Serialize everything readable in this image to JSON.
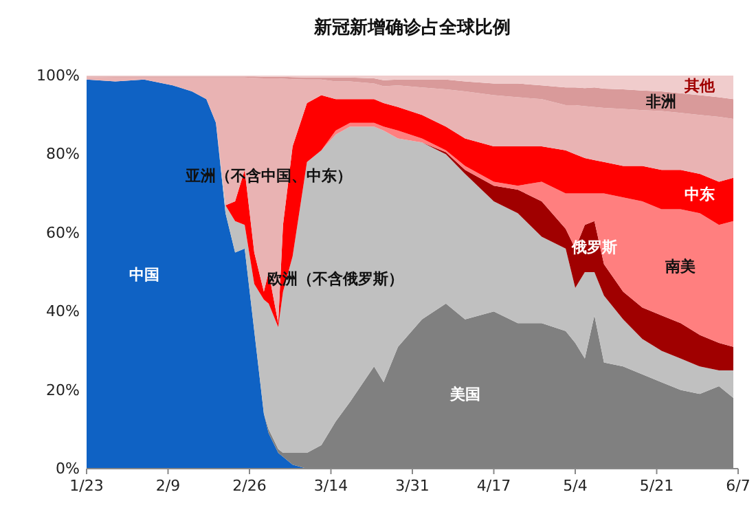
{
  "chart_data": {
    "type": "area",
    "stacked": true,
    "title": "新冠新增确诊占全球比例",
    "x": [
      "--01-23",
      "--01-29",
      "--02-04",
      "--02-10",
      "--02-14",
      "--02-17",
      "--02-19",
      "--02-21",
      "--02-23",
      "--02-25",
      "--02-27",
      "--02-29",
      "--03-01",
      "--03-03",
      "--03-04",
      "--03-06",
      "--03-09",
      "--03-12",
      "--03-15",
      "--03-18",
      "--03-23",
      "--03-25",
      "--03-28",
      "--04-02",
      "--04-07",
      "--04-11",
      "--04-17",
      "--04-22",
      "--04-27",
      "--05-02",
      "--05-04",
      "--05-06",
      "--05-08",
      "--05-10",
      "--05-14",
      "--05-18",
      "--05-22",
      "--05-26",
      "--05-30",
      "--06-03",
      "--06-06"
    ],
    "series": [
      {
        "name": "中国",
        "color": "#0f62c4",
        "values": [
          99,
          98.5,
          99,
          97.5,
          96,
          94,
          88,
          65,
          55,
          56,
          35,
          14,
          9,
          4,
          3,
          1,
          0,
          null,
          null,
          null,
          null,
          null,
          null,
          null,
          null,
          null,
          null,
          null,
          null,
          null,
          null,
          null,
          null,
          null,
          null,
          null,
          null,
          null,
          null,
          null,
          null
        ]
      },
      {
        "name": "美国",
        "color": "#808080",
        "values": [
          null,
          null,
          null,
          null,
          null,
          null,
          null,
          null,
          null,
          null,
          null,
          0,
          1,
          1,
          1,
          3,
          4,
          6,
          12,
          17,
          26,
          22,
          31,
          38,
          42,
          38,
          40,
          37,
          37,
          35,
          32,
          28,
          39,
          27,
          26,
          24,
          22,
          20,
          19,
          21,
          18
        ]
      },
      {
        "name": "欧洲（不含俄罗斯）",
        "color": "#c0c0c0",
        "values": [
          null,
          null,
          null,
          null,
          null,
          null,
          0,
          2,
          8,
          6,
          12,
          29,
          32,
          31,
          41,
          50,
          74,
          75,
          73,
          70,
          61,
          64,
          53,
          45,
          38,
          37,
          28,
          28,
          22,
          21,
          14,
          22,
          11,
          17,
          12,
          9,
          8,
          8,
          7,
          4,
          7
        ]
      },
      {
        "name": "俄罗斯",
        "color": "#a00000",
        "values": [
          null,
          null,
          null,
          null,
          null,
          null,
          null,
          null,
          null,
          null,
          null,
          null,
          null,
          null,
          null,
          null,
          null,
          null,
          null,
          null,
          null,
          null,
          null,
          0,
          0.5,
          1,
          4,
          6,
          9,
          5,
          10,
          12,
          13,
          8,
          7,
          8,
          9,
          9,
          8,
          7,
          6
        ]
      },
      {
        "name": "南美",
        "color": "#ff7f7f",
        "values": [
          null,
          null,
          null,
          null,
          null,
          null,
          null,
          null,
          null,
          null,
          null,
          null,
          null,
          null,
          null,
          null,
          null,
          0,
          1,
          1,
          1,
          1,
          2,
          1,
          0.5,
          1,
          1,
          1,
          5,
          9,
          14,
          8,
          7,
          18,
          24,
          27,
          27,
          29,
          31,
          30,
          32
        ]
      },
      {
        "name": "中东",
        "color": "#ff0000",
        "values": [
          null,
          null,
          null,
          null,
          null,
          null,
          null,
          0,
          5,
          14,
          8,
          2,
          8,
          1,
          17,
          28,
          15,
          14,
          8,
          6,
          6,
          6,
          6,
          6,
          6,
          7,
          9,
          10,
          9,
          11,
          10,
          9,
          8.5,
          8,
          8,
          9,
          10,
          10,
          10,
          11,
          11
        ]
      },
      {
        "name": "亚洲（不含中国、中东）",
        "color": "#e9b3b3",
        "values": [
          0.6,
          1.0,
          0.5,
          2.0,
          3.5,
          5.5,
          11.5,
          32.5,
          31.5,
          23.5,
          44.4,
          54.3,
          49.3,
          62.3,
          37.2,
          17.1,
          6,
          4,
          4.5,
          4.5,
          4,
          4.3,
          5.5,
          7,
          9.5,
          12,
          13,
          12.5,
          12,
          11.5,
          12.5,
          13.2,
          13.5,
          13.8,
          14.5,
          14.2,
          15,
          14.5,
          15,
          16.5,
          15
        ]
      },
      {
        "name": "非洲",
        "color": "#d99a9a",
        "values": [
          0.2,
          0.3,
          0.3,
          0.3,
          0.3,
          0.3,
          0.3,
          0.3,
          0.3,
          0.3,
          0.4,
          0.4,
          0.4,
          0.4,
          0.5,
          0.5,
          0.5,
          0.5,
          1,
          1,
          1.3,
          1.5,
          1.5,
          2,
          2.5,
          2.5,
          3,
          3.5,
          3.5,
          4.5,
          4.5,
          4.6,
          5,
          4.9,
          5,
          5,
          5,
          5,
          5,
          5,
          5
        ]
      },
      {
        "name": "其他",
        "color": "#f0cccc",
        "values": [
          0.2,
          0.2,
          0.2,
          0.2,
          0.2,
          0.2,
          0.2,
          0.2,
          0.2,
          0.2,
          0.2,
          0.3,
          0.3,
          0.3,
          0.3,
          0.4,
          0.5,
          0.5,
          0.5,
          0.5,
          0.7,
          1.2,
          1,
          1,
          1,
          1.5,
          2,
          2,
          2.5,
          3,
          3,
          3.2,
          3,
          3.3,
          3.5,
          3.8,
          4,
          4.5,
          5,
          5.5,
          6
        ]
      }
    ],
    "xlim": [
      "--01-23",
      "--06-07"
    ],
    "xticks": [
      {
        "value": "--01-23",
        "label": "1/23"
      },
      {
        "value": "--02-09",
        "label": "2/9"
      },
      {
        "value": "--02-26",
        "label": "2/26"
      },
      {
        "value": "--03-14",
        "label": "3/14"
      },
      {
        "value": "--03-31",
        "label": "3/31"
      },
      {
        "value": "--04-17",
        "label": "4/17"
      },
      {
        "value": "--05-04",
        "label": "5/4"
      },
      {
        "value": "--05-21",
        "label": "5/21"
      },
      {
        "value": "--06-07",
        "label": "6/7"
      }
    ],
    "ylim": [
      0,
      100
    ],
    "yticks": [
      {
        "value": 0,
        "label": "0%"
      },
      {
        "value": 20,
        "label": "20%"
      },
      {
        "value": 40,
        "label": "40%"
      },
      {
        "value": 60,
        "label": "60%"
      },
      {
        "value": 80,
        "label": "80%"
      },
      {
        "value": 100,
        "label": "100%"
      }
    ]
  }
}
